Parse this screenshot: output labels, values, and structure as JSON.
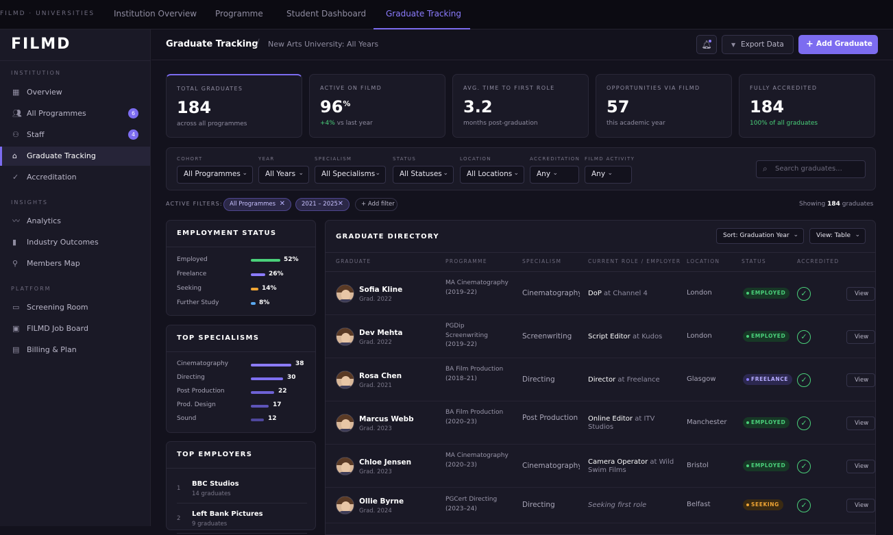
{
  "top_nav": {
    "brand": "FILMD · UNIVERSITIES",
    "tabs": [
      "Institution Overview",
      "Programme",
      "Student Dashboard",
      "Graduate Tracking"
    ],
    "active_tab": "Graduate Tracking"
  },
  "sidebar": {
    "logo": "FILMD",
    "sections": [
      {
        "title": "INSTITUTION",
        "items": [
          {
            "label": "Overview",
            "icon": "grid-icon"
          },
          {
            "label": "All Programmes",
            "icon": "users-icon",
            "badge": "6"
          },
          {
            "label": "Staff",
            "icon": "staff-icon",
            "badge": "4"
          },
          {
            "label": "Graduate Tracking",
            "icon": "graduation-cap-icon",
            "active": true
          },
          {
            "label": "Accreditation",
            "icon": "check-circle-icon"
          }
        ]
      },
      {
        "title": "INSIGHTS",
        "items": [
          {
            "label": "Analytics",
            "icon": "line-chart-icon"
          },
          {
            "label": "Industry Outcomes",
            "icon": "bar-chart-icon"
          },
          {
            "label": "Members Map",
            "icon": "person-icon"
          }
        ]
      },
      {
        "title": "PLATFORM",
        "items": [
          {
            "label": "Screening Room",
            "icon": "screen-icon"
          },
          {
            "label": "FILMD Job Board",
            "icon": "briefcase-icon"
          },
          {
            "label": "Billing & Plan",
            "icon": "card-icon"
          }
        ]
      }
    ]
  },
  "header": {
    "title": "Graduate Tracking",
    "subtitle": "New Arts University: All Years",
    "export_label": "Export Data",
    "add_label": "Add Graduate"
  },
  "stats": [
    {
      "label": "TOTAL GRADUATES",
      "value": "184",
      "suffix": "",
      "sub_prefix": "",
      "sub": "across all programmes"
    },
    {
      "label": "ACTIVE ON FILMD",
      "value": "96",
      "suffix": "%",
      "sub_prefix": "+4%",
      "sub": "vs last year"
    },
    {
      "label": "AVG. TIME TO FIRST ROLE",
      "value": "3.2",
      "suffix": "",
      "sub_prefix": "",
      "sub": "months post-graduation"
    },
    {
      "label": "OPPORTUNITIES VIA FILMD",
      "value": "57",
      "suffix": "",
      "sub_prefix": "",
      "sub": "this academic year"
    },
    {
      "label": "FULLY ACCREDITED",
      "value": "184",
      "suffix": "",
      "sub_prefix": "",
      "sub": "100% of all graduates"
    }
  ],
  "filters": [
    {
      "label": "COHORT",
      "value": "All Programmes"
    },
    {
      "label": "YEAR",
      "value": "All Years"
    },
    {
      "label": "SPECIALISM",
      "value": "All Specialisms"
    },
    {
      "label": "STATUS",
      "value": "All Statuses"
    },
    {
      "label": "LOCATION",
      "value": "All Locations"
    },
    {
      "label": "ACCREDITATION",
      "value": "Any"
    },
    {
      "label": "FILMD ACTIVITY",
      "value": "Any"
    }
  ],
  "search_placeholder": "Search graduates...",
  "active_filters": {
    "label": "ACTIVE FILTERS:",
    "chips": [
      "All Programmes",
      "2021 – 2025"
    ],
    "add_label": "+ Add filter",
    "showing_prefix": "Showing",
    "showing_count": "184",
    "showing_suffix": "graduates"
  },
  "employment_status": {
    "title": "EMPLOYMENT STATUS",
    "rows": [
      {
        "label": "Employed",
        "value": "52%",
        "fraction": 0.52,
        "color": "#4ad07a"
      },
      {
        "label": "Freelance",
        "value": "26%",
        "fraction": 0.26,
        "color": "#8c7cff"
      },
      {
        "label": "Seeking",
        "value": "14%",
        "fraction": 0.14,
        "color": "#f0a534"
      },
      {
        "label": "Further Study",
        "value": "8%",
        "fraction": 0.08,
        "color": "#5aa8f0"
      }
    ]
  },
  "top_specialisms": {
    "title": "TOP SPECIALISMS",
    "rows": [
      {
        "label": "Cinematography",
        "value": "38",
        "count": 38
      },
      {
        "label": "Directing",
        "value": "30",
        "count": 30
      },
      {
        "label": "Post Production",
        "value": "22",
        "count": 22
      },
      {
        "label": "Prod. Design",
        "value": "17",
        "count": 17
      },
      {
        "label": "Sound",
        "value": "12",
        "count": 12
      }
    ]
  },
  "top_employers": {
    "title": "TOP EMPLOYERS",
    "rows": [
      {
        "rank": "1",
        "name": "BBC Studios",
        "count": "14 graduates"
      },
      {
        "rank": "2",
        "name": "Left Bank Pictures",
        "count": "9 graduates"
      }
    ]
  },
  "directory": {
    "title": "GRADUATE DIRECTORY",
    "sort_label": "Sort: Graduation Year",
    "view_label": "View: Table",
    "columns": [
      "GRADUATE",
      "PROGRAMME",
      "SPECIALISM",
      "CURRENT ROLE / EMPLOYER",
      "LOCATION",
      "STATUS",
      "ACCREDITED"
    ],
    "view_button": "View",
    "rows": [
      {
        "name": "Sofia Kline",
        "grad": "Grad. 2022",
        "programme": "MA Cinematography (2019–22)",
        "specialism": "Cinematography",
        "role": "DoP",
        "at": "at Channel 4",
        "location": "London",
        "status": "EMPLOYED",
        "status_type": "employed"
      },
      {
        "name": "Dev Mehta",
        "grad": "Grad. 2022",
        "programme": "PGDip Screenwriting (2019–22)",
        "specialism": "Screenwriting",
        "role": "Script Editor",
        "at": "at Kudos",
        "location": "London",
        "status": "EMPLOYED",
        "status_type": "employed"
      },
      {
        "name": "Rosa Chen",
        "grad": "Grad. 2021",
        "programme": "BA Film Production (2018–21)",
        "specialism": "Directing",
        "role": "Director",
        "at": "at Freelance",
        "location": "Glasgow",
        "status": "FREELANCE",
        "status_type": "freelance"
      },
      {
        "name": "Marcus Webb",
        "grad": "Grad. 2023",
        "programme": "BA Film Production (2020–23)",
        "specialism": "Post Production",
        "role": "Online Editor",
        "at": "at ITV Studios",
        "location": "Manchester",
        "status": "EMPLOYED",
        "status_type": "employed"
      },
      {
        "name": "Chloe Jensen",
        "grad": "Grad. 2023",
        "programme": "MA Cinematography (2020–23)",
        "specialism": "Cinematography",
        "role": "Camera Operator",
        "at": "at Wild Swim Films",
        "location": "Bristol",
        "status": "EMPLOYED",
        "status_type": "employed"
      },
      {
        "name": "Ollie Byrne",
        "grad": "Grad. 2024",
        "programme": "PGCert Directing (2023–24)",
        "specialism": "Directing",
        "role": "",
        "at": "Seeking first role",
        "location": "Belfast",
        "status": "SEEKING",
        "status_type": "seeking"
      }
    ]
  }
}
